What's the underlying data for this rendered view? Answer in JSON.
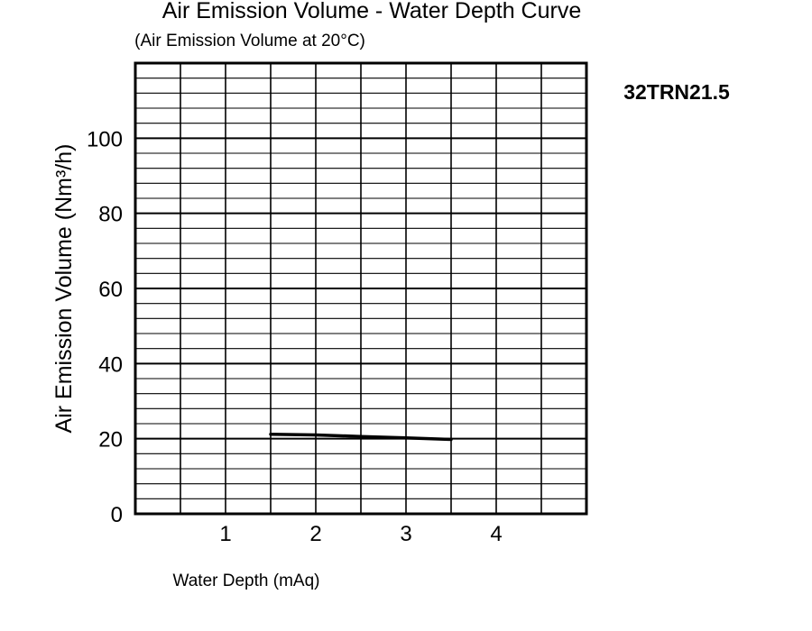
{
  "chart_data": {
    "type": "line",
    "title": "Air Emission Volume - Water Depth Curve",
    "subtitle": "(Air Emission Volume at 20°C)",
    "model_label": "32TRN21.5",
    "xlabel": "Water Depth (mAq)",
    "ylabel": "Air Emission Volume (Nm³/h)",
    "xlim": [
      0,
      5
    ],
    "ylim": [
      0,
      120
    ],
    "x_ticks": [
      1,
      2,
      3,
      4
    ],
    "x_tick_labels": [
      "1",
      "2",
      "3",
      "4"
    ],
    "y_ticks": [
      0,
      20,
      40,
      60,
      80,
      100
    ],
    "y_tick_labels": [
      "0",
      "20",
      "40",
      "60",
      "80",
      "100"
    ],
    "grid": true,
    "x_grid_step": 0.5,
    "y_minor_step": 4,
    "y_major_step": 20,
    "line_color": "#000000",
    "series": [
      {
        "x": [
          1.5,
          2.0,
          2.5,
          3.0,
          3.5
        ],
        "y": [
          21.2,
          21.0,
          20.6,
          20.2,
          19.8
        ]
      }
    ]
  }
}
